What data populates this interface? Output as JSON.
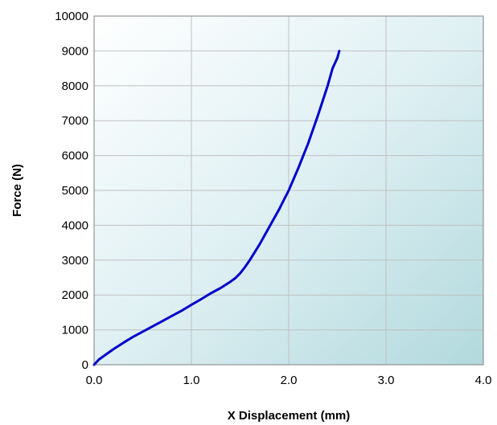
{
  "chart_data": {
    "type": "line",
    "xlabel": "X Displacement (mm)",
    "ylabel": "Force (N)",
    "xlim": [
      0,
      4
    ],
    "ylim": [
      0,
      10000
    ],
    "x_ticks": [
      "0.0",
      "1.0",
      "2.0",
      "3.0",
      "4.0"
    ],
    "y_ticks": [
      "0",
      "1000",
      "2000",
      "3000",
      "4000",
      "5000",
      "6000",
      "7000",
      "8000",
      "9000",
      "10000"
    ],
    "grid": true,
    "legend": "none",
    "series": [
      {
        "color": "#0000cc",
        "x": [
          0.0,
          0.05,
          0.1,
          0.2,
          0.3,
          0.4,
          0.5,
          0.6,
          0.7,
          0.8,
          0.9,
          1.0,
          1.1,
          1.2,
          1.3,
          1.4,
          1.45,
          1.5,
          1.55,
          1.6,
          1.7,
          1.8,
          1.9,
          2.0,
          2.1,
          2.2,
          2.3,
          2.4,
          2.45,
          2.5,
          2.52
        ],
        "y": [
          0,
          150,
          250,
          450,
          630,
          800,
          950,
          1100,
          1250,
          1400,
          1550,
          1720,
          1880,
          2050,
          2200,
          2380,
          2480,
          2620,
          2800,
          3000,
          3450,
          3950,
          4450,
          5000,
          5650,
          6350,
          7150,
          8000,
          8500,
          8800,
          9000
        ]
      }
    ]
  }
}
